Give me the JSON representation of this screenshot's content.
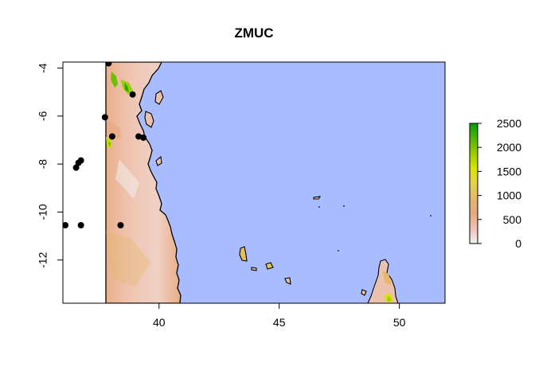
{
  "title": "ZMUC",
  "colors": {
    "ocean": "#a8bcff",
    "nodata": "#ffffff",
    "coast": "#000000",
    "points": "#000000",
    "ramp": [
      "#f2f2f2",
      "#efc1b6",
      "#e8a77e",
      "#e6b86a",
      "#e4d24c",
      "#d8e400",
      "#9ccd00",
      "#55b400",
      "#009f00"
    ]
  },
  "chart_data": {
    "type": "scatter",
    "xlim": [
      36.0,
      51.9
    ],
    "ylim": [
      -13.8,
      -3.75
    ],
    "x_ticks": [
      40,
      45,
      50
    ],
    "y_ticks": [
      -4,
      -6,
      -8,
      -10,
      -12
    ],
    "x_tick_labels": [
      "40",
      "45",
      "50"
    ],
    "y_tick_labels": [
      "-4",
      "-6",
      "-8",
      "-10",
      "-12"
    ],
    "raster_west_edge": 37.75,
    "points": [
      {
        "x": 37.9,
        "y": -3.8
      },
      {
        "x": 38.9,
        "y": -5.1
      },
      {
        "x": 37.75,
        "y": -6.05
      },
      {
        "x": 38.05,
        "y": -6.85
      },
      {
        "x": 39.15,
        "y": -6.85
      },
      {
        "x": 39.35,
        "y": -6.9
      },
      {
        "x": 36.75,
        "y": -7.85
      },
      {
        "x": 36.65,
        "y": -7.95
      },
      {
        "x": 36.55,
        "y": -8.15
      },
      {
        "x": 36.1,
        "y": -10.55
      },
      {
        "x": 36.75,
        "y": -10.55
      },
      {
        "x": 38.4,
        "y": -10.55
      }
    ],
    "legend": {
      "min": 0,
      "max": 2500,
      "ticks": [
        0,
        500,
        1000,
        1500,
        2000,
        2500
      ],
      "tick_labels": [
        "0",
        "500",
        "1000",
        "1500",
        "2000",
        "2500"
      ]
    }
  }
}
